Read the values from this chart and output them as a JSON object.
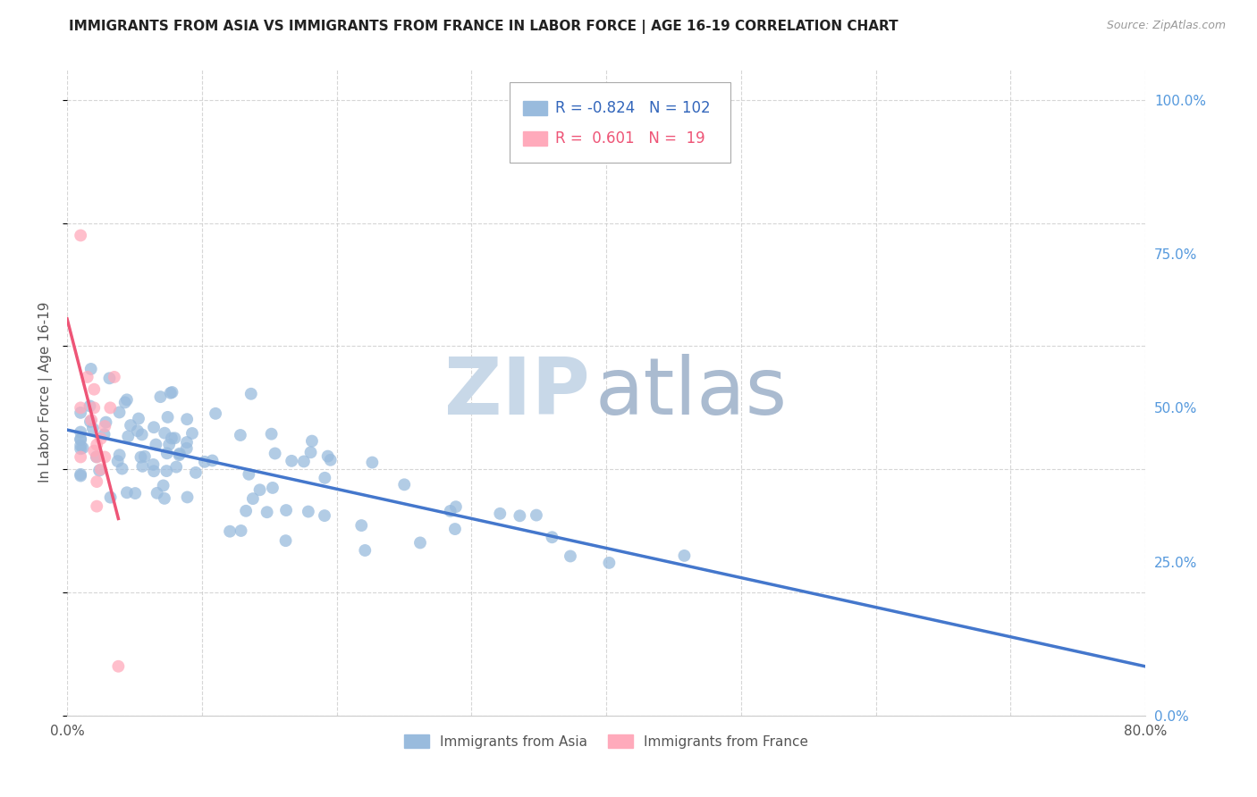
{
  "title": "IMMIGRANTS FROM ASIA VS IMMIGRANTS FROM FRANCE IN LABOR FORCE | AGE 16-19 CORRELATION CHART",
  "source": "Source: ZipAtlas.com",
  "ylabel": "In Labor Force | Age 16-19",
  "xlim": [
    0.0,
    0.8
  ],
  "ylim": [
    0.0,
    1.05
  ],
  "xticks": [
    0.0,
    0.1,
    0.2,
    0.3,
    0.4,
    0.5,
    0.6,
    0.7,
    0.8
  ],
  "yticks_right": [
    0.0,
    0.25,
    0.5,
    0.75,
    1.0
  ],
  "ytick_labels_right": [
    "0.0%",
    "25.0%",
    "50.0%",
    "75.0%",
    "100.0%"
  ],
  "xtick_labels": [
    "0.0%",
    "",
    "",
    "",
    "",
    "",
    "",
    "",
    "80.0%"
  ],
  "legend_blue_r": "-0.824",
  "legend_blue_n": "102",
  "legend_pink_r": "0.601",
  "legend_pink_n": "19",
  "blue_color": "#99BBDD",
  "pink_color": "#FFAABB",
  "blue_line_color": "#4477CC",
  "pink_line_color": "#EE5577",
  "watermark_zip_color": "#C8D8E8",
  "watermark_atlas_color": "#AABBD0"
}
